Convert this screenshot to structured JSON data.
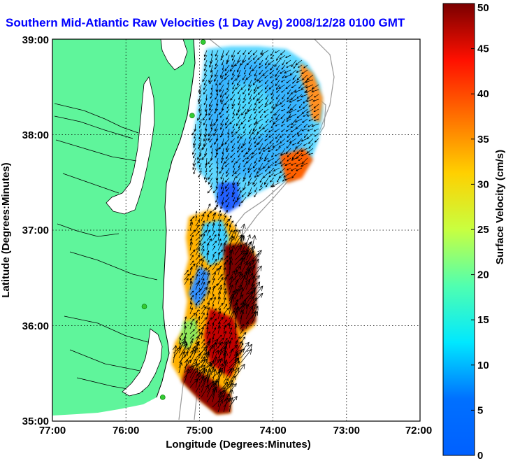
{
  "chart_data": {
    "type": "heatmap",
    "title": "Southern Mid-Atlantic Raw Velocities (1 Day Avg) 2008/12/28 0100 GMT",
    "xlabel": "Longitude (Degrees:Minutes)",
    "ylabel": "Latitude (Degrees:Minutes)",
    "xlim": [
      -77,
      -72
    ],
    "ylim": [
      35,
      39
    ],
    "x_ticks": [
      -77,
      -76,
      -75,
      -74,
      -73,
      -72
    ],
    "x_tick_labels": [
      "77:00",
      "76:00",
      "75:00",
      "74:00",
      "73:00",
      "72:00"
    ],
    "y_ticks": [
      35,
      36,
      37,
      38,
      39
    ],
    "y_tick_labels": [
      "35:00",
      "36:00",
      "37:00",
      "38:00",
      "39:00"
    ],
    "grid": true,
    "colorbar": {
      "label": "Surface Velocity (cm/s)",
      "range": [
        0,
        50
      ],
      "ticks": [
        0,
        5,
        10,
        15,
        20,
        25,
        30,
        35,
        40,
        45,
        50
      ],
      "colormap": "jet",
      "location": "right"
    },
    "colors": {
      "land": "#5ff59b",
      "coastline": "#000000",
      "title": "#0000ff",
      "stations": "#33cc33"
    },
    "regions": [
      {
        "name": "north-field",
        "lon": [
          -75.0,
          -73.3
        ],
        "lat": [
          37.5,
          38.93
        ],
        "speed_cm_s": 10
      },
      {
        "name": "north-field-east-edge",
        "lon": [
          -73.55,
          -73.3
        ],
        "lat": [
          37.6,
          38.5
        ],
        "speed_cm_s": 32
      },
      {
        "name": "north-field-southeast-corner",
        "lon": [
          -73.9,
          -73.5
        ],
        "lat": [
          37.45,
          37.75
        ],
        "speed_cm_s": 33
      },
      {
        "name": "north-field-tail",
        "lon": [
          -74.8,
          -74.5
        ],
        "lat": [
          37.2,
          37.55
        ],
        "speed_cm_s": 8
      },
      {
        "name": "south-field",
        "lon": [
          -75.4,
          -74.2
        ],
        "lat": [
          35.1,
          37.1
        ],
        "speed_cm_s": 28
      },
      {
        "name": "south-field-north-pocket",
        "lon": [
          -75.2,
          -74.75
        ],
        "lat": [
          36.6,
          37.05
        ],
        "speed_cm_s": 12
      },
      {
        "name": "south-field-east-jet",
        "lon": [
          -74.7,
          -74.15
        ],
        "lat": [
          35.9,
          36.8
        ],
        "speed_cm_s": 50
      },
      {
        "name": "south-field-south-jet",
        "lon": [
          -75.3,
          -74.5
        ],
        "lat": [
          35.1,
          35.9
        ],
        "speed_cm_s": 48
      },
      {
        "name": "south-field-nearshore-band",
        "lon": [
          -75.25,
          -74.95
        ],
        "lat": [
          35.8,
          36.4
        ],
        "speed_cm_s": 14
      }
    ],
    "stations": [
      {
        "lon": -74.95,
        "lat": 38.97
      },
      {
        "lon": -75.1,
        "lat": 38.2
      },
      {
        "lon": -75.75,
        "lat": 36.2
      },
      {
        "lon": -75.5,
        "lat": 35.25
      }
    ]
  }
}
